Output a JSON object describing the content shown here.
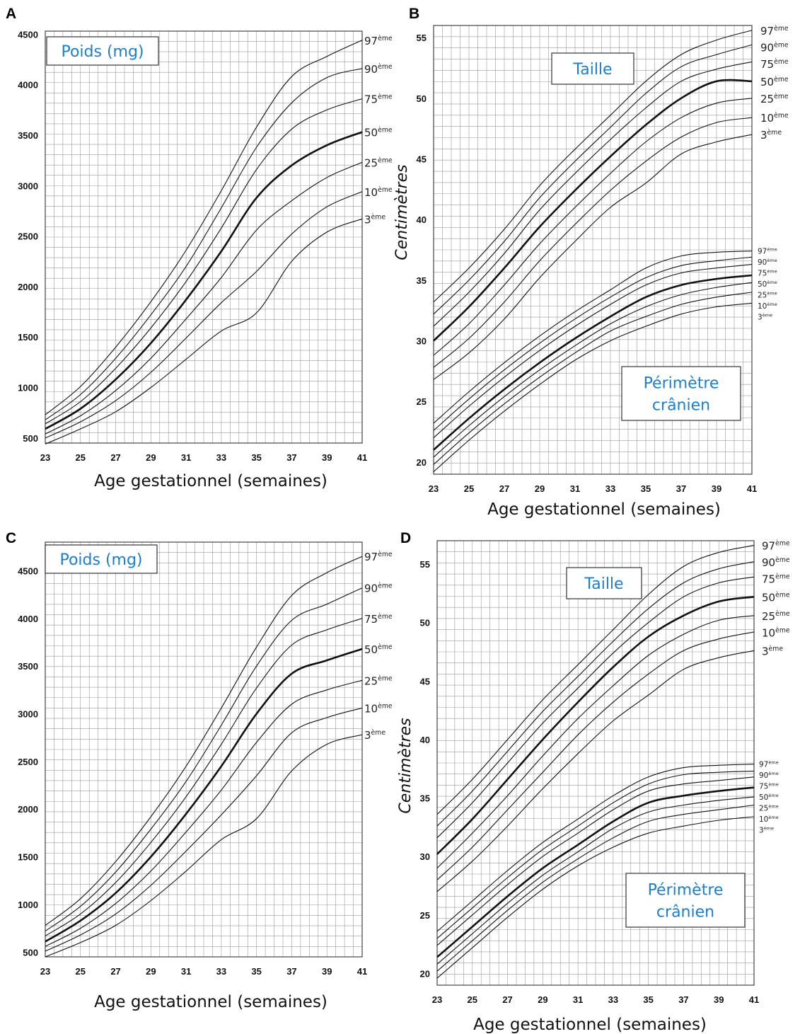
{
  "colors": {
    "label_blue": "#1e7ec8",
    "grid": "#9a9a9a",
    "curve": "#111111"
  },
  "chart_data": [
    {
      "id": "A",
      "panel_label": "A",
      "type": "line",
      "title": "",
      "box_labels": [
        [
          "Poids (mg)"
        ]
      ],
      "xlabel": "Age gestationnel (semaines)",
      "ylabel": "",
      "xlim": [
        23,
        41
      ],
      "ylim": [
        450,
        4530
      ],
      "xticks": [
        23,
        25,
        27,
        29,
        31,
        33,
        35,
        37,
        39,
        41
      ],
      "yticks": [
        500,
        1000,
        1500,
        2000,
        2500,
        3000,
        3500,
        4000,
        4500
      ],
      "grid": true,
      "x": [
        23,
        25,
        27,
        29,
        31,
        33,
        35,
        37,
        39,
        41
      ],
      "series": [
        {
          "num": "97",
          "suffix": "ème",
          "values": [
            730,
            1010,
            1400,
            1850,
            2360,
            2950,
            3580,
            4080,
            4280,
            4440
          ]
        },
        {
          "num": "90",
          "suffix": "ème",
          "values": [
            680,
            930,
            1290,
            1720,
            2200,
            2780,
            3380,
            3820,
            4070,
            4160
          ]
        },
        {
          "num": "75",
          "suffix": "ème",
          "values": [
            640,
            860,
            1190,
            1590,
            2050,
            2580,
            3160,
            3560,
            3750,
            3860
          ]
        },
        {
          "num": "50",
          "suffix": "ème",
          "values": [
            590,
            790,
            1080,
            1440,
            1870,
            2350,
            2880,
            3200,
            3400,
            3530
          ]
        },
        {
          "num": "25",
          "suffix": "ème",
          "values": [
            540,
            720,
            970,
            1290,
            1680,
            2090,
            2560,
            2850,
            3080,
            3230
          ]
        },
        {
          "num": "10",
          "suffix": "ème",
          "values": [
            500,
            660,
            870,
            1150,
            1490,
            1840,
            2150,
            2520,
            2790,
            2940
          ]
        },
        {
          "num": "3",
          "suffix": "ème",
          "values": [
            440,
            590,
            760,
            1000,
            1280,
            1560,
            1740,
            2250,
            2540,
            2670
          ]
        }
      ]
    },
    {
      "id": "B",
      "panel_label": "B",
      "type": "line",
      "title": "",
      "box_labels": [
        [
          "Taille"
        ],
        [
          "Périmètre",
          "crânien"
        ]
      ],
      "xlabel": "Age gestationnel (semaines)",
      "ylabel": "Centimètres",
      "xlim": [
        23,
        41
      ],
      "ylim": [
        19,
        56
      ],
      "xticks": [
        23,
        25,
        27,
        29,
        31,
        33,
        35,
        37,
        39,
        41
      ],
      "yticks": [
        20,
        25,
        30,
        35,
        40,
        45,
        50,
        55
      ],
      "grid": true,
      "x": [
        23,
        25,
        27,
        29,
        31,
        33,
        35,
        37,
        39,
        41
      ],
      "series": [
        {
          "group": "Taille",
          "num": "97",
          "suffix": "ème",
          "values": [
            33.2,
            36.0,
            39.2,
            42.8,
            45.8,
            48.6,
            51.4,
            53.6,
            54.8,
            55.6
          ]
        },
        {
          "group": "Taille",
          "num": "90",
          "suffix": "ème",
          "values": [
            32.2,
            35.0,
            38.2,
            41.8,
            44.8,
            47.6,
            50.4,
            52.6,
            53.6,
            54.4
          ]
        },
        {
          "group": "Taille",
          "num": "75",
          "suffix": "ème",
          "values": [
            31.2,
            34.0,
            37.2,
            40.8,
            43.8,
            46.6,
            49.2,
            51.4,
            52.4,
            53.0
          ]
        },
        {
          "group": "Taille",
          "num": "50",
          "suffix": "ème",
          "values": [
            30.0,
            32.8,
            36.0,
            39.4,
            42.4,
            45.2,
            47.8,
            50.0,
            51.4,
            51.4
          ]
        },
        {
          "group": "Taille",
          "num": "25",
          "suffix": "ème",
          "values": [
            28.8,
            31.4,
            34.6,
            38.0,
            41.0,
            43.8,
            46.4,
            48.4,
            49.6,
            50.0
          ]
        },
        {
          "group": "Taille",
          "num": "10",
          "suffix": "ème",
          "values": [
            27.8,
            30.2,
            33.2,
            36.6,
            39.6,
            42.4,
            44.8,
            46.8,
            48.0,
            48.4
          ]
        },
        {
          "group": "Taille",
          "num": "3",
          "suffix": "ème",
          "values": [
            26.8,
            29.0,
            31.8,
            35.2,
            38.2,
            41.0,
            43.0,
            45.4,
            46.4,
            47.0
          ]
        },
        {
          "group": "Périmètre crânien",
          "num": "97",
          "suffix": "ème",
          "values": [
            23.2,
            25.8,
            28.2,
            30.4,
            32.4,
            34.2,
            36.0,
            37.0,
            37.3,
            37.4
          ]
        },
        {
          "group": "Périmètre crânien",
          "num": "90",
          "suffix": "ème",
          "values": [
            22.6,
            25.2,
            27.6,
            29.8,
            31.8,
            33.6,
            35.2,
            36.2,
            36.6,
            36.9
          ]
        },
        {
          "group": "Périmètre crânien",
          "num": "75",
          "suffix": "ème",
          "values": [
            22.0,
            24.6,
            27.0,
            29.2,
            31.2,
            33.0,
            34.6,
            35.6,
            36.0,
            36.3
          ]
        },
        {
          "group": "Périmètre crânien",
          "num": "50",
          "suffix": "ème",
          "values": [
            21.0,
            23.6,
            26.0,
            28.2,
            30.2,
            32.0,
            33.6,
            34.6,
            35.1,
            35.4
          ]
        },
        {
          "group": "Périmètre crânien",
          "num": "25",
          "suffix": "ème",
          "values": [
            20.4,
            23.0,
            25.4,
            27.6,
            29.6,
            31.4,
            32.8,
            33.8,
            34.4,
            34.8
          ]
        },
        {
          "group": "Périmètre crânien",
          "num": "10",
          "suffix": "ème",
          "values": [
            19.8,
            22.4,
            24.8,
            27.0,
            29.0,
            30.8,
            32.0,
            33.0,
            33.6,
            34.0
          ]
        },
        {
          "group": "Périmètre crânien",
          "num": "3",
          "suffix": "ème",
          "values": [
            19.2,
            21.8,
            24.2,
            26.4,
            28.4,
            30.0,
            31.2,
            32.2,
            32.8,
            33.1
          ]
        }
      ]
    },
    {
      "id": "C",
      "panel_label": "C",
      "type": "line",
      "title": "",
      "box_labels": [
        [
          "Poids (mg)"
        ]
      ],
      "xlabel": "Age gestationnel (semaines)",
      "ylabel": "",
      "xlim": [
        23,
        41
      ],
      "ylim": [
        450,
        4800
      ],
      "xticks": [
        23,
        25,
        27,
        29,
        31,
        33,
        35,
        37,
        39,
        41
      ],
      "yticks": [
        500,
        1000,
        1500,
        2000,
        2500,
        3000,
        3500,
        4000,
        4500
      ],
      "grid": true,
      "x": [
        23,
        25,
        27,
        29,
        31,
        33,
        35,
        37,
        39,
        41
      ],
      "series": [
        {
          "num": "97",
          "suffix": "ème",
          "values": [
            780,
            1060,
            1450,
            1920,
            2450,
            3060,
            3700,
            4240,
            4480,
            4650
          ]
        },
        {
          "num": "90",
          "suffix": "ème",
          "values": [
            720,
            980,
            1340,
            1790,
            2290,
            2880,
            3500,
            3980,
            4150,
            4320
          ]
        },
        {
          "num": "75",
          "suffix": "ème",
          "values": [
            670,
            900,
            1230,
            1650,
            2130,
            2680,
            3270,
            3720,
            3880,
            4000
          ]
        },
        {
          "num": "50",
          "suffix": "ème",
          "values": [
            610,
            830,
            1120,
            1500,
            1950,
            2450,
            3000,
            3420,
            3560,
            3680
          ]
        },
        {
          "num": "25",
          "suffix": "ème",
          "values": [
            560,
            750,
            1010,
            1350,
            1760,
            2200,
            2700,
            3100,
            3250,
            3350
          ]
        },
        {
          "num": "10",
          "suffix": "ème",
          "values": [
            510,
            680,
            900,
            1200,
            1560,
            1940,
            2350,
            2800,
            2960,
            3060
          ]
        },
        {
          "num": "3",
          "suffix": "ème",
          "values": [
            450,
            600,
            780,
            1040,
            1350,
            1680,
            1900,
            2400,
            2680,
            2780
          ]
        }
      ]
    },
    {
      "id": "D",
      "panel_label": "D",
      "type": "line",
      "title": "",
      "box_labels": [
        [
          "Taille"
        ],
        [
          "Périmètre",
          "crânien"
        ]
      ],
      "xlabel": "Age gestationnel (semaines)",
      "ylabel": "Centimètres",
      "xlim": [
        23,
        41
      ],
      "ylim": [
        19,
        57
      ],
      "xticks": [
        23,
        25,
        27,
        29,
        31,
        33,
        35,
        37,
        39,
        41
      ],
      "yticks": [
        20,
        25,
        30,
        35,
        40,
        45,
        50,
        55
      ],
      "grid": true,
      "x": [
        23,
        25,
        27,
        29,
        31,
        33,
        35,
        37,
        39,
        41
      ],
      "series": [
        {
          "group": "Taille",
          "num": "97",
          "suffix": "ème",
          "values": [
            33.6,
            36.6,
            40.0,
            43.4,
            46.4,
            49.4,
            52.4,
            54.8,
            56.0,
            56.6
          ]
        },
        {
          "group": "Taille",
          "num": "90",
          "suffix": "ème",
          "values": [
            32.6,
            35.6,
            39.0,
            42.4,
            45.4,
            48.4,
            51.2,
            53.4,
            54.6,
            55.2
          ]
        },
        {
          "group": "Taille",
          "num": "75",
          "suffix": "ème",
          "values": [
            31.6,
            34.6,
            38.0,
            41.4,
            44.4,
            47.4,
            50.0,
            52.2,
            53.4,
            53.9
          ]
        },
        {
          "group": "Taille",
          "num": "50",
          "suffix": "ème",
          "values": [
            30.2,
            33.2,
            36.6,
            40.0,
            43.2,
            46.2,
            48.8,
            50.6,
            51.8,
            52.2
          ]
        },
        {
          "group": "Taille",
          "num": "25",
          "suffix": "ème",
          "values": [
            29.0,
            32.0,
            35.2,
            38.6,
            41.8,
            44.6,
            47.2,
            49.0,
            50.2,
            50.6
          ]
        },
        {
          "group": "Taille",
          "num": "10",
          "suffix": "ème",
          "values": [
            28.0,
            30.8,
            34.0,
            37.2,
            40.4,
            43.2,
            45.6,
            47.6,
            48.6,
            49.2
          ]
        },
        {
          "group": "Taille",
          "num": "3",
          "suffix": "ème",
          "values": [
            27.0,
            29.6,
            32.6,
            35.8,
            38.8,
            41.6,
            43.8,
            46.0,
            47.0,
            47.6
          ]
        },
        {
          "group": "Périmètre crânien",
          "num": "97",
          "suffix": "ème",
          "values": [
            23.6,
            26.2,
            28.8,
            31.2,
            33.2,
            35.2,
            36.8,
            37.6,
            37.8,
            37.9
          ]
        },
        {
          "group": "Périmètre crânien",
          "num": "90",
          "suffix": "ème",
          "values": [
            23.0,
            25.6,
            28.2,
            30.6,
            32.6,
            34.6,
            36.2,
            37.0,
            37.2,
            37.3
          ]
        },
        {
          "group": "Périmètre crânien",
          "num": "75",
          "suffix": "ème",
          "values": [
            22.4,
            25.0,
            27.6,
            30.0,
            32.0,
            34.0,
            35.6,
            36.2,
            36.5,
            36.8
          ]
        },
        {
          "group": "Périmètre crânien",
          "num": "50",
          "suffix": "ème",
          "values": [
            21.4,
            24.0,
            26.6,
            29.0,
            31.0,
            33.0,
            34.6,
            35.2,
            35.6,
            35.9
          ]
        },
        {
          "group": "Périmètre crânien",
          "num": "25",
          "suffix": "ème",
          "values": [
            20.8,
            23.4,
            26.0,
            28.4,
            30.4,
            32.4,
            33.8,
            34.4,
            34.8,
            35.1
          ]
        },
        {
          "group": "Périmètre crânien",
          "num": "10",
          "suffix": "ème",
          "values": [
            20.2,
            22.8,
            25.4,
            27.8,
            29.8,
            31.6,
            33.0,
            33.6,
            34.0,
            34.4
          ]
        },
        {
          "group": "Périmètre crânien",
          "num": "3",
          "suffix": "ème",
          "values": [
            19.6,
            22.2,
            24.8,
            27.2,
            29.2,
            30.8,
            32.0,
            32.6,
            33.1,
            33.4
          ]
        }
      ]
    }
  ]
}
